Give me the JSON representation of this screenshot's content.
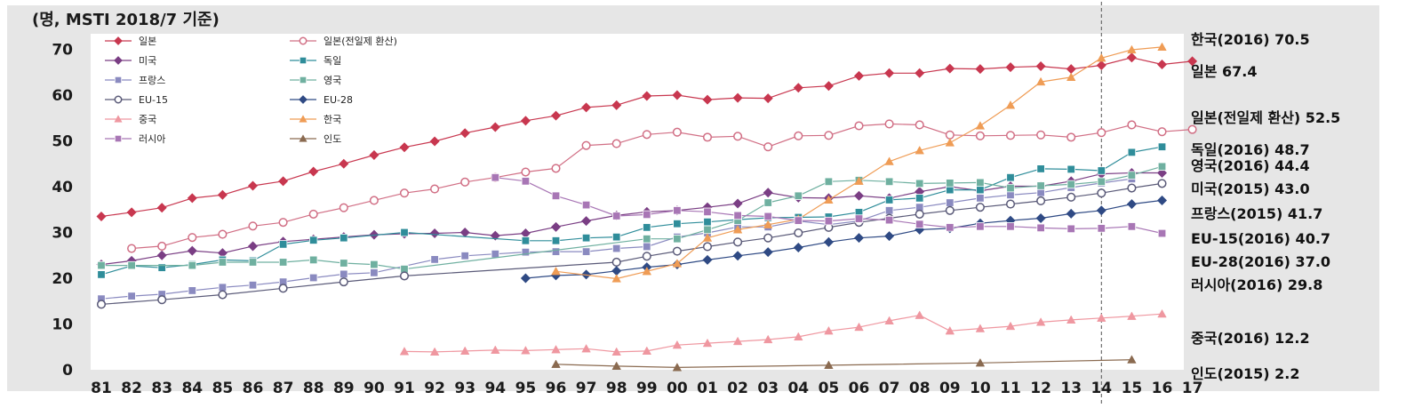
{
  "chart_data": {
    "type": "line",
    "title": "",
    "unit_label": "(명, MSTI 2018/7 기준)",
    "ylim": [
      0,
      75
    ],
    "yticks": [
      0,
      10,
      20,
      30,
      40,
      50,
      60,
      70
    ],
    "x": [
      "81",
      "82",
      "83",
      "84",
      "85",
      "86",
      "87",
      "88",
      "89",
      "90",
      "91",
      "92",
      "93",
      "94",
      "95",
      "96",
      "97",
      "98",
      "99",
      "00",
      "01",
      "02",
      "03",
      "04",
      "05",
      "06",
      "07",
      "08",
      "09",
      "10",
      "11",
      "12",
      "13",
      "14",
      "15",
      "16",
      "17"
    ],
    "grid": false,
    "legend_position": "top-left",
    "series": [
      {
        "name": "일본",
        "color": "#c8374f",
        "marker": "diamond-filled",
        "values": [
          33.5,
          34.4,
          35.4,
          37.5,
          38.2,
          40.2,
          41.2,
          43.3,
          45,
          46.9,
          48.6,
          49.9,
          51.7,
          53,
          54.4,
          55.5,
          57.3,
          57.8,
          59.8,
          60,
          59,
          59.4,
          59.3,
          61.6,
          62,
          64.2,
          64.8,
          64.8,
          65.8,
          65.7,
          66.1,
          66.3,
          65.7,
          66.5,
          68.2,
          66.7,
          67.4
        ]
      },
      {
        "name": "일본(전일제 환산)",
        "color": "#d16f85",
        "marker": "circle-open",
        "values": [
          null,
          26.5,
          27,
          28.9,
          29.6,
          31.4,
          32.2,
          34,
          35.4,
          37,
          38.6,
          39.5,
          41,
          42,
          43.2,
          44,
          49,
          49.4,
          51.4,
          51.9,
          50.8,
          51,
          48.7,
          51.1,
          51.2,
          53.3,
          53.7,
          53.5,
          51.3,
          51.1,
          51.2,
          51.3,
          50.8,
          51.8,
          53.5,
          52,
          52.5
        ]
      },
      {
        "name": "미국",
        "color": "#7a3e84",
        "marker": "diamond-filled",
        "values": [
          23,
          23.8,
          25,
          26,
          25.5,
          27,
          28,
          28.5,
          29,
          29.5,
          29.7,
          29.8,
          30,
          29.3,
          29.8,
          31.2,
          32.5,
          33.7,
          34.5,
          34.8,
          35.5,
          36.3,
          38.7,
          37.6,
          37.5,
          38,
          37.5,
          38.9,
          40,
          39.1,
          40.1,
          40.1,
          41.2,
          42.8,
          43,
          43,
          null
        ]
      },
      {
        "name": "독일",
        "color": "#2f8d9a",
        "marker": "square-filled",
        "values": [
          20.8,
          22.7,
          22.3,
          23,
          24,
          23.8,
          27.4,
          28.3,
          28.8,
          null,
          30,
          null,
          null,
          null,
          28.2,
          28.2,
          28.8,
          29,
          31.1,
          31.9,
          32.3,
          32.8,
          33.2,
          33.3,
          33.4,
          34.4,
          37.1,
          37.5,
          39.3,
          39.3,
          42,
          43.9,
          43.8,
          43.5,
          47.5,
          48.7,
          null
        ]
      },
      {
        "name": "프랑스",
        "color": "#8a8ac0",
        "marker": "square-filled",
        "values": [
          15.5,
          16.1,
          16.5,
          17.3,
          18,
          18.5,
          19.2,
          20.1,
          20.9,
          21.2,
          null,
          24.1,
          24.9,
          25.3,
          25.7,
          25.8,
          25.8,
          26.5,
          26.9,
          29,
          29.9,
          31.2,
          31.2,
          32.5,
          31.7,
          32.5,
          34.8,
          35.5,
          36.5,
          37.5,
          38.2,
          38.7,
          39.8,
          40.8,
          41.7,
          null,
          null
        ]
      },
      {
        "name": "영국",
        "color": "#6fb0a0",
        "marker": "square-filled",
        "values": [
          22.8,
          22.8,
          null,
          22.8,
          23.5,
          23.5,
          23.5,
          24,
          23.3,
          23,
          22,
          null,
          null,
          null,
          null,
          null,
          null,
          null,
          28.6,
          28.6,
          30.6,
          32.6,
          36.5,
          38,
          41.1,
          41.4,
          41.1,
          40.7,
          40.8,
          40.9,
          39.7,
          40.2,
          40.5,
          41.1,
          42.5,
          44.4,
          null
        ]
      },
      {
        "name": "EU-15",
        "color": "#5a5a78",
        "marker": "circle-open",
        "values": [
          14.3,
          null,
          15.3,
          null,
          16.4,
          null,
          17.8,
          null,
          19.2,
          null,
          20.5,
          null,
          null,
          null,
          null,
          null,
          null,
          23.5,
          24.8,
          25.9,
          26.9,
          27.9,
          28.8,
          29.9,
          31.1,
          32.2,
          33.1,
          34,
          34.8,
          35.5,
          36.2,
          36.9,
          37.7,
          38.6,
          39.7,
          40.7,
          null
        ]
      },
      {
        "name": "EU-28",
        "color": "#2f4a84",
        "marker": "diamond-filled",
        "values": [
          null,
          null,
          null,
          null,
          null,
          null,
          null,
          null,
          null,
          null,
          null,
          null,
          null,
          null,
          20,
          20.6,
          20.8,
          21.6,
          22.4,
          23,
          24,
          24.9,
          25.7,
          26.7,
          27.9,
          28.8,
          29.2,
          30.6,
          30.9,
          32,
          32.6,
          33.1,
          34.1,
          34.8,
          36.2,
          37,
          null
        ]
      },
      {
        "name": "중국",
        "color": "#ef97a0",
        "marker": "triangle-filled",
        "values": [
          null,
          null,
          null,
          null,
          null,
          null,
          null,
          null,
          null,
          null,
          4,
          3.9,
          4.1,
          4.3,
          4.2,
          4.4,
          4.6,
          3.9,
          4.1,
          5.4,
          5.8,
          6.2,
          6.6,
          7.2,
          8.5,
          9.3,
          10.7,
          11.9,
          8.5,
          9,
          9.5,
          10.4,
          10.9,
          11.3,
          11.7,
          12.2,
          null
        ]
      },
      {
        "name": "한국",
        "color": "#ef9c55",
        "marker": "triangle-filled",
        "values": [
          null,
          null,
          null,
          null,
          null,
          null,
          null,
          null,
          null,
          null,
          null,
          null,
          null,
          null,
          null,
          21.5,
          null,
          19.9,
          21.5,
          23.2,
          28.8,
          30.6,
          31.7,
          32.9,
          37.1,
          41.2,
          45.5,
          47.9,
          49.6,
          53.3,
          57.8,
          62.9,
          63.9,
          68.1,
          69.9,
          70.5,
          null
        ]
      },
      {
        "name": "러시아",
        "color": "#a876b5",
        "marker": "square-filled",
        "values": [
          null,
          null,
          null,
          null,
          null,
          null,
          null,
          null,
          null,
          null,
          null,
          null,
          null,
          42,
          41.2,
          38,
          36,
          33.6,
          33.9,
          34.8,
          34.5,
          33.7,
          33.5,
          32.6,
          32.5,
          33,
          32.7,
          31.8,
          31.1,
          31.3,
          31.3,
          31,
          30.8,
          30.9,
          31.3,
          29.8,
          null
        ]
      },
      {
        "name": "인도",
        "color": "#8a6a50",
        "marker": "triangle-filled",
        "values": [
          null,
          null,
          null,
          null,
          null,
          null,
          null,
          null,
          null,
          null,
          null,
          null,
          null,
          null,
          null,
          1.2,
          null,
          0.8,
          null,
          0.5,
          null,
          null,
          null,
          null,
          1,
          null,
          null,
          null,
          null,
          1.5,
          null,
          null,
          null,
          null,
          2.2,
          null,
          null
        ]
      }
    ],
    "end_labels": [
      {
        "text": "한국(2016) 70.5",
        "value": 70.5
      },
      {
        "text": "일본 67.4",
        "value": 67.4
      },
      {
        "text": "일본(전일제 환산) 52.5",
        "value": 52.5
      },
      {
        "text": "독일(2016) 48.7",
        "value": 48.7
      },
      {
        "text": "영국(2016) 44.4",
        "value": 44.4
      },
      {
        "text": "미국(2015) 43.0",
        "value": 43.0
      },
      {
        "text": "프랑스(2015) 41.7",
        "value": 41.7
      },
      {
        "text": "EU-15(2016) 40.7",
        "value": 40.7
      },
      {
        "text": "EU-28(2016) 37.0",
        "value": 37.0
      },
      {
        "text": "러시아(2016) 29.8",
        "value": 29.8
      },
      {
        "text": "중국(2016) 12.2",
        "value": 12.2
      },
      {
        "text": "인도(2015) 2.2",
        "value": 2.2
      }
    ],
    "reference_line_x": "14"
  }
}
